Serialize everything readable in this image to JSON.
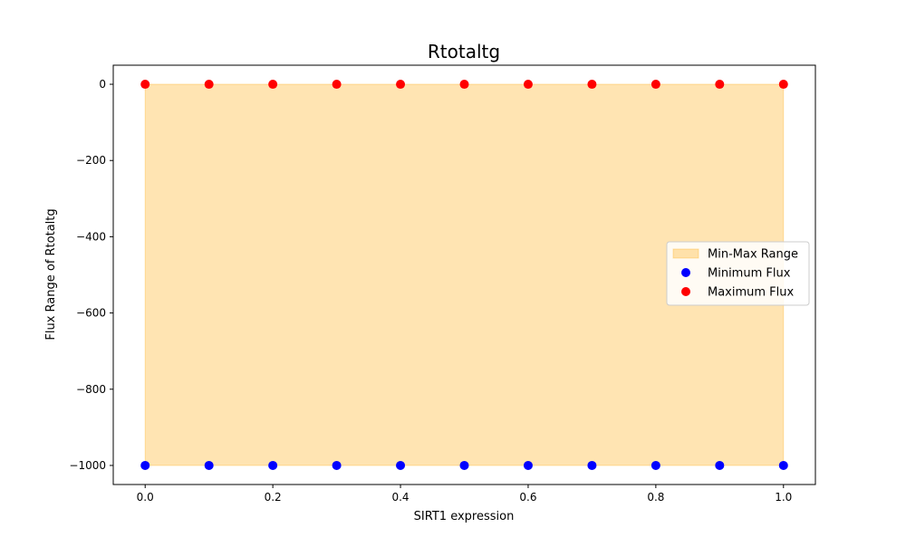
{
  "chart_data": {
    "type": "scatter",
    "title": "Rtotaltg",
    "xlabel": "SIRT1 expression",
    "ylabel": "Flux Range of Rtotaltg",
    "xlim": [
      -0.05,
      1.05
    ],
    "ylim": [
      -1050,
      50
    ],
    "x_ticks": [
      0.0,
      0.2,
      0.4,
      0.6,
      0.8,
      1.0
    ],
    "x_tick_labels": [
      "0.0",
      "0.2",
      "0.4",
      "0.6",
      "0.8",
      "1.0"
    ],
    "y_ticks": [
      0,
      -200,
      -400,
      -600,
      -800,
      -1000
    ],
    "y_tick_labels": [
      "0",
      "−200",
      "−400",
      "−600",
      "−800",
      "−1000"
    ],
    "grid": false,
    "legend_position": "center-right",
    "x": [
      0.0,
      0.1,
      0.2,
      0.3,
      0.4,
      0.5,
      0.6,
      0.7,
      0.8,
      0.9,
      1.0
    ],
    "series": [
      {
        "name": "Minimum Flux",
        "kind": "scatter",
        "color": "#0000ff",
        "values": [
          -1000,
          -1000,
          -1000,
          -1000,
          -1000,
          -1000,
          -1000,
          -1000,
          -1000,
          -1000,
          -1000
        ]
      },
      {
        "name": "Maximum Flux",
        "kind": "scatter",
        "color": "#ff0000",
        "values": [
          0,
          0,
          0,
          0,
          0,
          0,
          0,
          0,
          0,
          0,
          0
        ]
      }
    ],
    "range_band": {
      "name": "Min-Max Range",
      "color": "#ffa500",
      "lower": "Minimum Flux",
      "upper": "Maximum Flux"
    },
    "legend": [
      {
        "label": "Min-Max Range",
        "marker": "patch",
        "color": "#ffa500"
      },
      {
        "label": "Minimum Flux",
        "marker": "dot",
        "color": "#0000ff"
      },
      {
        "label": "Maximum Flux",
        "marker": "dot",
        "color": "#ff0000"
      }
    ]
  }
}
